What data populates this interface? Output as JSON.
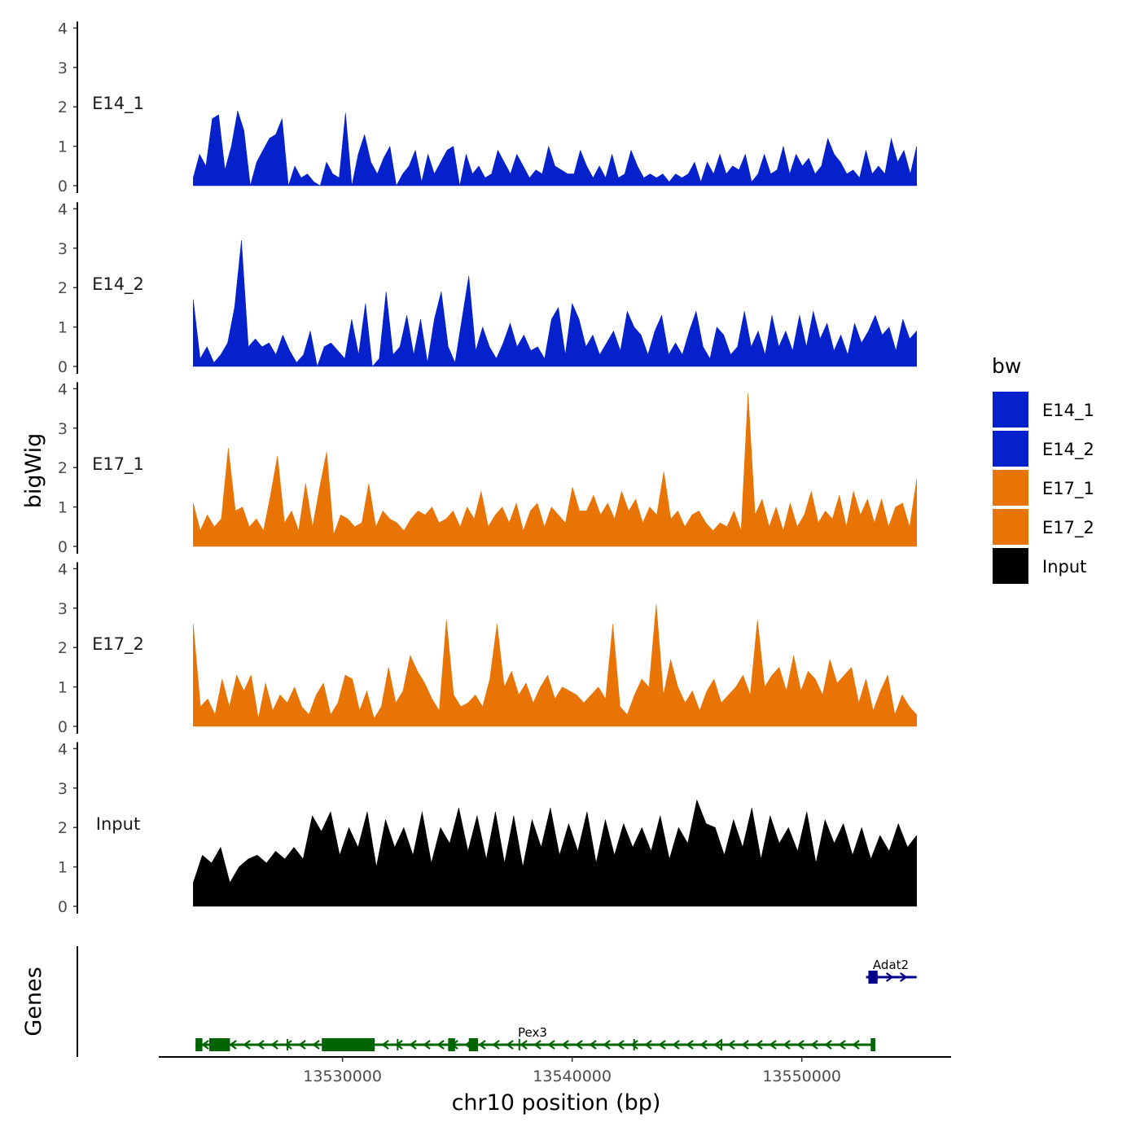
{
  "chart_data": {
    "type": "area",
    "region": "chr10",
    "xlabel": "chr10 position (bp)",
    "ylabel_tracks": "bigWig",
    "ylabel_genes": "Genes",
    "xlim": [
      13522000,
      13556500
    ],
    "data_range": [
      13523500,
      13555000
    ],
    "x_ticks": [
      {
        "value": 13530000,
        "label": "13530000"
      },
      {
        "value": 13540000,
        "label": "13540000"
      },
      {
        "value": 13550000,
        "label": "13550000"
      }
    ],
    "y_ticks": [
      {
        "value": 0,
        "label": "0"
      },
      {
        "value": 1,
        "label": "1"
      },
      {
        "value": 2,
        "label": "2"
      },
      {
        "value": 3,
        "label": "3"
      },
      {
        "value": 4,
        "label": "4"
      }
    ],
    "ylim": [
      0,
      4
    ],
    "legend": {
      "title": "bw",
      "position": "right",
      "entries": [
        {
          "label": "E14_1",
          "color": "#0521CB"
        },
        {
          "label": "E14_2",
          "color": "#0521CB"
        },
        {
          "label": "E17_1",
          "color": "#E87406"
        },
        {
          "label": "E17_2",
          "color": "#E87406"
        },
        {
          "label": "Input",
          "color": "#000000"
        }
      ]
    },
    "series": [
      {
        "name": "E14_1",
        "color": "#0521CB",
        "values": [
          0.2,
          0.8,
          0.5,
          1.7,
          1.8,
          0.4,
          1.0,
          1.9,
          1.4,
          0,
          0.6,
          0.9,
          1.2,
          1.3,
          1.7,
          0,
          0.5,
          0.2,
          0.3,
          0.1,
          0,
          0.6,
          0.3,
          0.2,
          1.85,
          0,
          0.8,
          1.3,
          0.6,
          0.3,
          0.7,
          1.0,
          0,
          0.3,
          0.5,
          0.9,
          0.1,
          0.8,
          0.3,
          0.6,
          0.9,
          1.0,
          0,
          0.8,
          0.3,
          0.5,
          0.2,
          0.3,
          0.9,
          0.6,
          0.3,
          0.8,
          0.5,
          0.2,
          0.4,
          0.3,
          1.0,
          0.5,
          0.4,
          0.3,
          0.3,
          0.9,
          0.5,
          0.2,
          0.5,
          0.2,
          0.8,
          0.2,
          0.3,
          0.9,
          0.5,
          0.2,
          0.3,
          0.2,
          0.3,
          0.1,
          0.3,
          0.2,
          0.3,
          0.6,
          0.1,
          0.6,
          0.3,
          0.8,
          0.3,
          0.5,
          0.4,
          0.8,
          0.1,
          0.3,
          0.8,
          0.3,
          0.4,
          1.0,
          0.3,
          0.8,
          0.5,
          0.7,
          0.3,
          0.5,
          1.2,
          0.8,
          0.6,
          0.3,
          0.4,
          0.2,
          0.9,
          0.3,
          0.5,
          0.3,
          1.2,
          0.6,
          0.9,
          0.3,
          1.0
        ]
      },
      {
        "name": "E14_2",
        "color": "#0521CB",
        "values": [
          1.7,
          0.2,
          0.5,
          0.1,
          0.3,
          0.6,
          1.5,
          3.2,
          0.5,
          0.7,
          0.5,
          0.6,
          0.3,
          0.8,
          0.4,
          0.1,
          0.3,
          0.9,
          0,
          0.5,
          0.6,
          0.4,
          0.2,
          1.2,
          0.3,
          1.6,
          0,
          0.2,
          1.9,
          0.3,
          0.5,
          1.3,
          0.3,
          1.2,
          0.1,
          1.2,
          1.9,
          0.5,
          0.1,
          1.2,
          2.3,
          0.4,
          1.0,
          0.5,
          0.2,
          0.6,
          1.1,
          0.5,
          0.8,
          0.4,
          0.5,
          0.2,
          1.2,
          1.5,
          0.3,
          1.6,
          1.2,
          0.5,
          0.8,
          0.3,
          0.6,
          0.9,
          0.4,
          1.4,
          1.0,
          0.8,
          0.3,
          0.9,
          1.3,
          0.3,
          0.6,
          0.3,
          0.9,
          1.4,
          0.5,
          0.2,
          1.0,
          0.8,
          0.3,
          0.5,
          1.4,
          0.5,
          0.9,
          0.3,
          1.3,
          0.5,
          0.9,
          0.4,
          1.3,
          0.5,
          1.4,
          0.7,
          1.1,
          0.4,
          0.8,
          0.3,
          1.1,
          0.6,
          0.9,
          1.3,
          0.8,
          1.0,
          0.4,
          1.2,
          0.7,
          0.9
        ]
      },
      {
        "name": "E17_1",
        "color": "#E87406",
        "values": [
          1.1,
          0.4,
          0.8,
          0.5,
          0.7,
          2.5,
          0.9,
          1.0,
          0.5,
          0.7,
          0.4,
          1.3,
          2.3,
          0.6,
          0.9,
          0.4,
          1.6,
          0.5,
          1.5,
          2.4,
          0.3,
          0.8,
          0.7,
          0.5,
          0.6,
          1.6,
          0.5,
          0.9,
          0.7,
          0.6,
          0.4,
          0.7,
          0.9,
          0.8,
          1.0,
          0.6,
          0.7,
          0.9,
          0.5,
          1.0,
          0.7,
          1.4,
          0.5,
          0.8,
          1.0,
          0.6,
          1.1,
          0.4,
          0.9,
          1.1,
          0.5,
          1.0,
          0.8,
          0.6,
          1.5,
          0.9,
          0.9,
          1.3,
          0.8,
          1.1,
          0.7,
          1.4,
          0.9,
          1.2,
          0.6,
          1.0,
          0.8,
          1.9,
          0.7,
          0.9,
          0.5,
          0.8,
          0.9,
          0.6,
          0.4,
          0.6,
          0.5,
          0.9,
          0.4,
          3.9,
          0.8,
          1.2,
          0.5,
          1.0,
          0.4,
          1.1,
          0.5,
          0.8,
          1.4,
          0.6,
          0.9,
          0.7,
          1.3,
          0.5,
          1.4,
          0.8,
          1.2,
          0.6,
          1.2,
          0.5,
          1.0,
          1.1,
          0.5,
          1.7
        ]
      },
      {
        "name": "E17_2",
        "color": "#E87406",
        "values": [
          2.6,
          0.5,
          0.7,
          0.3,
          1.2,
          0.5,
          1.3,
          0.9,
          1.3,
          0.2,
          1.1,
          0.4,
          0.8,
          0.6,
          1.0,
          0.5,
          0.3,
          0.8,
          1.1,
          0.3,
          0.6,
          1.3,
          1.2,
          0.4,
          0.9,
          0.2,
          0.5,
          1.5,
          0.6,
          0.9,
          1.8,
          1.4,
          1.1,
          0.7,
          0.4,
          2.7,
          0.8,
          0.5,
          0.6,
          0.8,
          0.5,
          1.2,
          2.6,
          1.0,
          1.4,
          0.8,
          1.1,
          0.6,
          1.0,
          1.3,
          0.7,
          1.0,
          0.9,
          0.8,
          0.6,
          0.8,
          1.0,
          0.7,
          2.6,
          0.5,
          0.3,
          0.8,
          1.2,
          1.0,
          3.1,
          0.8,
          1.7,
          1.0,
          0.6,
          0.9,
          0.4,
          0.9,
          1.2,
          0.6,
          0.8,
          1.0,
          1.3,
          0.8,
          2.7,
          1.0,
          1.3,
          1.5,
          0.9,
          1.8,
          0.9,
          1.4,
          1.2,
          0.8,
          1.7,
          1.1,
          1.3,
          1.5,
          0.6,
          1.2,
          0.4,
          0.9,
          1.3,
          0.3,
          0.8,
          0.5,
          0.3
        ]
      },
      {
        "name": "Input",
        "color": "#000000",
        "values": [
          0.6,
          1.3,
          1.1,
          1.5,
          0.6,
          1.0,
          1.2,
          1.3,
          1.1,
          1.4,
          1.2,
          1.5,
          1.2,
          2.3,
          1.9,
          2.4,
          1.3,
          2.0,
          1.5,
          2.4,
          1.0,
          2.2,
          1.5,
          2.0,
          1.3,
          2.4,
          1.1,
          2.0,
          1.6,
          2.5,
          1.4,
          2.3,
          1.2,
          2.4,
          1.1,
          2.3,
          1.0,
          2.2,
          1.5,
          2.5,
          1.3,
          2.1,
          1.4,
          2.4,
          1.1,
          2.2,
          1.3,
          2.1,
          1.5,
          2.0,
          1.4,
          2.3,
          1.2,
          2.0,
          1.6,
          2.7,
          2.1,
          2.0,
          1.3,
          2.2,
          1.5,
          2.5,
          1.2,
          2.3,
          1.6,
          2.0,
          1.4,
          2.4,
          1.1,
          2.2,
          1.6,
          2.1,
          1.3,
          2.0,
          1.2,
          1.8,
          1.4,
          2.1,
          1.5,
          1.8
        ]
      }
    ],
    "genes": [
      {
        "name": "Pex3",
        "strand": "-",
        "color": "#006400",
        "start": 13523600,
        "end": 13553200,
        "exons": [
          [
            13523600,
            13523900
          ],
          [
            13524200,
            13525100
          ],
          [
            13529100,
            13531400
          ],
          [
            13534600,
            13534900
          ],
          [
            13535500,
            13535900
          ],
          [
            13553000,
            13553200
          ]
        ],
        "introns_at": [
          13527600,
          13532400,
          13537700,
          13542700,
          13546500
        ]
      },
      {
        "name": "Adat2",
        "strand": "+",
        "color": "#00008B",
        "start": 13552800,
        "end": 13555000,
        "exons": [
          [
            13552900,
            13553300
          ]
        ]
      }
    ]
  }
}
